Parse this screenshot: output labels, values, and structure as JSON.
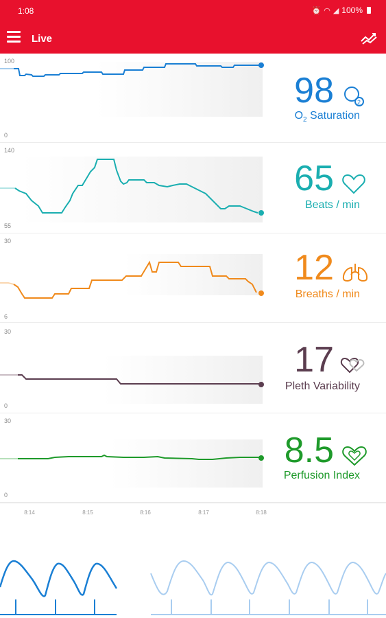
{
  "status": {
    "time": "1:08",
    "battery": "100%"
  },
  "appbar": {
    "title": "Live"
  },
  "parameters": [
    {
      "key": "spo2",
      "value": "98",
      "label_main": "O",
      "label_sub": "2",
      "label_rest": " Saturation",
      "y_max": "100",
      "y_min": "0",
      "color": "#1a7fd4",
      "icon": "o2-bubbles-icon"
    },
    {
      "key": "pr",
      "value": "65",
      "label": "Beats / min",
      "y_max": "140",
      "y_min": "55",
      "color": "#1aaeb0",
      "icon": "heart-outline-icon"
    },
    {
      "key": "rr",
      "value": "12",
      "label": "Breaths / min",
      "y_max": "30",
      "y_min": "6",
      "color": "#f08a1c",
      "icon": "lungs-icon"
    },
    {
      "key": "pvi",
      "value": "17",
      "label": "Pleth Variability",
      "y_max": "30",
      "y_min": "0",
      "color": "#5b3d4f",
      "icon": "double-heart-icon"
    },
    {
      "key": "pi",
      "value": "8.5",
      "label": "Perfusion Index",
      "y_max": "30",
      "y_min": "0",
      "color": "#1e9a2a",
      "icon": "heart-in-heart-icon"
    }
  ],
  "time_axis": [
    "8:14",
    "8:15",
    "8:16",
    "8:17",
    "8:18"
  ]
}
